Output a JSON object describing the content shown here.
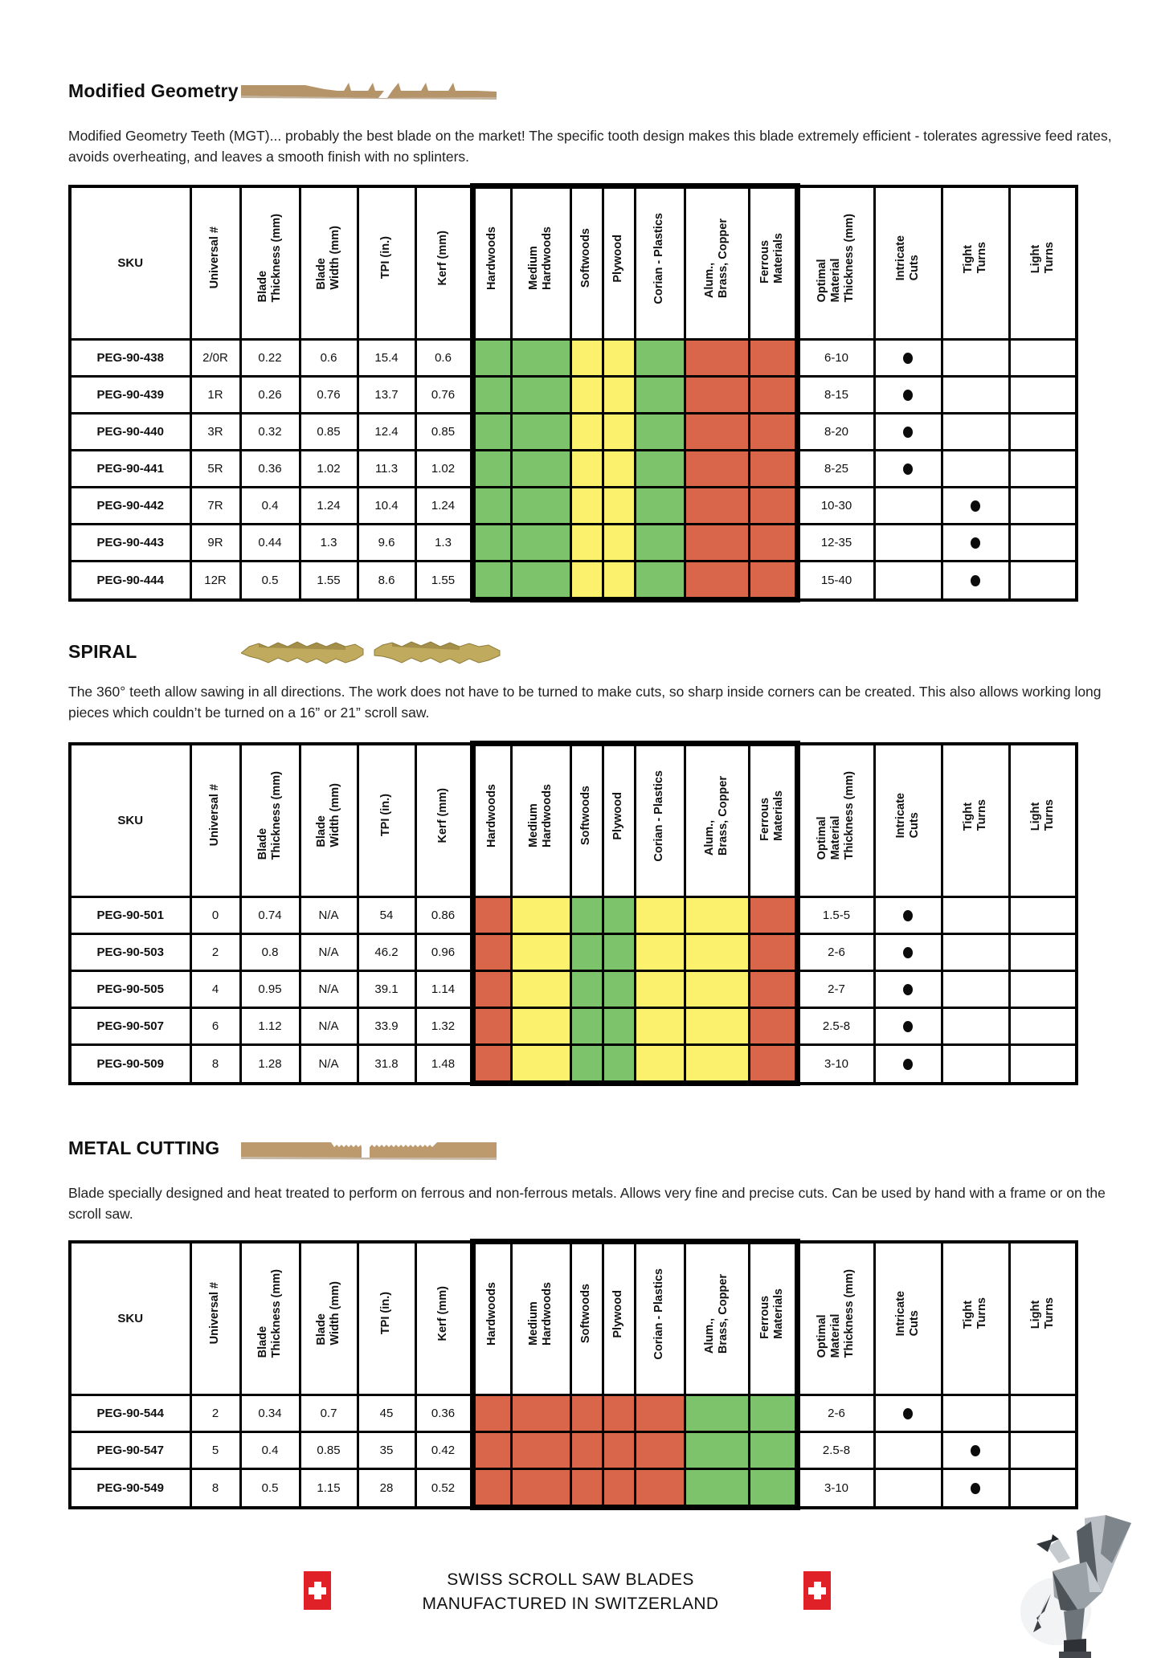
{
  "table_columns": [
    {
      "label": "SKU"
    },
    {
      "label": "Universal #"
    },
    {
      "label": "Blade\nThickness (mm)"
    },
    {
      "label": "Blade\nWidth (mm)"
    },
    {
      "label": "TPI (in.)"
    },
    {
      "label": "Kerf (mm)"
    },
    {
      "label": "Hardwoods",
      "group": "materials"
    },
    {
      "label": "Medium\nHardwoods",
      "group": "materials"
    },
    {
      "label": "Softwoods",
      "group": "materials"
    },
    {
      "label": "Plywood",
      "group": "materials"
    },
    {
      "label": "Corian  - Plastics",
      "group": "materials"
    },
    {
      "label": "Alum.,\nBrass, Copper",
      "group": "materials"
    },
    {
      "label": "Ferrous\nMaterials",
      "group": "materials"
    },
    {
      "label": "Optimal\nMaterial\nThickness (mm)"
    },
    {
      "label": "Intricate\nCuts"
    },
    {
      "label": "Tight\nTurns"
    },
    {
      "label": "Light\nTurns"
    }
  ],
  "legend_colors": {
    "good": "#7cc36b",
    "fair": "#fbf16d",
    "poor": "#d9664a"
  },
  "icons": {
    "flag": "swiss-flag",
    "section1_art": "flat-tooth-blade",
    "section2_art": "spiral-blade",
    "section3_art": "metal-cutting-blade",
    "corner_art": "origami-pegasus"
  },
  "sections": [
    {
      "title": "Modified Geometry",
      "description": "Modified Geometry Teeth (MGT)... probably the best blade on the market! The specific tooth design makes this blade extremely efficient - tolerates agressive feed rates, avoids overheating, and leaves a smooth finish with no splinters.",
      "table": {
        "rows": [
          {
            "sku": "PEG-90-438",
            "universal": "2/0R",
            "blade_thickness": "0.22",
            "blade_width": "0.6",
            "tpi": "15.4",
            "kerf": "0.6",
            "materials": [
              "good",
              "good",
              "fair",
              "fair",
              "good",
              "poor",
              "poor"
            ],
            "optimal_thickness": "6-10",
            "intricate_cuts": true,
            "tight_turns": false,
            "light_turns": false
          },
          {
            "sku": "PEG-90-439",
            "universal": "1R",
            "blade_thickness": "0.26",
            "blade_width": "0.76",
            "tpi": "13.7",
            "kerf": "0.76",
            "materials": [
              "good",
              "good",
              "fair",
              "fair",
              "good",
              "poor",
              "poor"
            ],
            "optimal_thickness": "8-15",
            "intricate_cuts": true,
            "tight_turns": false,
            "light_turns": false
          },
          {
            "sku": "PEG-90-440",
            "universal": "3R",
            "blade_thickness": "0.32",
            "blade_width": "0.85",
            "tpi": "12.4",
            "kerf": "0.85",
            "materials": [
              "good",
              "good",
              "fair",
              "fair",
              "good",
              "poor",
              "poor"
            ],
            "optimal_thickness": "8-20",
            "intricate_cuts": true,
            "tight_turns": false,
            "light_turns": false
          },
          {
            "sku": "PEG-90-441",
            "universal": "5R",
            "blade_thickness": "0.36",
            "blade_width": "1.02",
            "tpi": "11.3",
            "kerf": "1.02",
            "materials": [
              "good",
              "good",
              "fair",
              "fair",
              "good",
              "poor",
              "poor"
            ],
            "optimal_thickness": "8-25",
            "intricate_cuts": true,
            "tight_turns": false,
            "light_turns": false
          },
          {
            "sku": "PEG-90-442",
            "universal": "7R",
            "blade_thickness": "0.4",
            "blade_width": "1.24",
            "tpi": "10.4",
            "kerf": "1.24",
            "materials": [
              "good",
              "good",
              "fair",
              "fair",
              "good",
              "poor",
              "poor"
            ],
            "optimal_thickness": "10-30",
            "intricate_cuts": false,
            "tight_turns": true,
            "light_turns": false
          },
          {
            "sku": "PEG-90-443",
            "universal": "9R",
            "blade_thickness": "0.44",
            "blade_width": "1.3",
            "tpi": "9.6",
            "kerf": "1.3",
            "materials": [
              "good",
              "good",
              "fair",
              "fair",
              "good",
              "poor",
              "poor"
            ],
            "optimal_thickness": "12-35",
            "intricate_cuts": false,
            "tight_turns": true,
            "light_turns": false
          },
          {
            "sku": "PEG-90-444",
            "universal": "12R",
            "blade_thickness": "0.5",
            "blade_width": "1.55",
            "tpi": "8.6",
            "kerf": "1.55",
            "materials": [
              "good",
              "good",
              "fair",
              "fair",
              "good",
              "poor",
              "poor"
            ],
            "optimal_thickness": "15-40",
            "intricate_cuts": false,
            "tight_turns": true,
            "light_turns": false
          }
        ]
      }
    },
    {
      "title": "SPIRAL",
      "description": "The 360° teeth allow sawing in all directions. The work does not have to be turned to make cuts, so sharp inside corners can be created. This also allows working long pieces which couldn’t be turned on a 16” or 21” scroll saw.",
      "table": {
        "rows": [
          {
            "sku": "PEG-90-501",
            "universal": "0",
            "blade_thickness": "0.74",
            "blade_width": "N/A",
            "tpi": "54",
            "kerf": "0.86",
            "materials": [
              "poor",
              "fair",
              "good",
              "good",
              "fair",
              "fair",
              "poor"
            ],
            "optimal_thickness": "1.5-5",
            "intricate_cuts": true,
            "tight_turns": false,
            "light_turns": false
          },
          {
            "sku": "PEG-90-503",
            "universal": "2",
            "blade_thickness": "0.8",
            "blade_width": "N/A",
            "tpi": "46.2",
            "kerf": "0.96",
            "materials": [
              "poor",
              "fair",
              "good",
              "good",
              "fair",
              "fair",
              "poor"
            ],
            "optimal_thickness": "2-6",
            "intricate_cuts": true,
            "tight_turns": false,
            "light_turns": false
          },
          {
            "sku": "PEG-90-505",
            "universal": "4",
            "blade_thickness": "0.95",
            "blade_width": "N/A",
            "tpi": "39.1",
            "kerf": "1.14",
            "materials": [
              "poor",
              "fair",
              "good",
              "good",
              "fair",
              "fair",
              "poor"
            ],
            "optimal_thickness": "2-7",
            "intricate_cuts": true,
            "tight_turns": false,
            "light_turns": false
          },
          {
            "sku": "PEG-90-507",
            "universal": "6",
            "blade_thickness": "1.12",
            "blade_width": "N/A",
            "tpi": "33.9",
            "kerf": "1.32",
            "materials": [
              "poor",
              "fair",
              "good",
              "good",
              "fair",
              "fair",
              "poor"
            ],
            "optimal_thickness": "2.5-8",
            "intricate_cuts": true,
            "tight_turns": false,
            "light_turns": false
          },
          {
            "sku": "PEG-90-509",
            "universal": "8",
            "blade_thickness": "1.28",
            "blade_width": "N/A",
            "tpi": "31.8",
            "kerf": "1.48",
            "materials": [
              "poor",
              "fair",
              "good",
              "good",
              "fair",
              "fair",
              "poor"
            ],
            "optimal_thickness": "3-10",
            "intricate_cuts": true,
            "tight_turns": false,
            "light_turns": false
          }
        ]
      }
    },
    {
      "title": "METAL CUTTING",
      "description": "Blade specially designed and heat treated to perform on ferrous and non-ferrous metals. Allows very fine and precise cuts. Can be used by hand with a frame or on the scroll saw.",
      "table": {
        "rows": [
          {
            "sku": "PEG-90-544",
            "universal": "2",
            "blade_thickness": "0.34",
            "blade_width": "0.7",
            "tpi": "45",
            "kerf": "0.36",
            "materials": [
              "poor",
              "poor",
              "poor",
              "poor",
              "poor",
              "good",
              "good"
            ],
            "optimal_thickness": "2-6",
            "intricate_cuts": true,
            "tight_turns": false,
            "light_turns": false
          },
          {
            "sku": "PEG-90-547",
            "universal": "5",
            "blade_thickness": "0.4",
            "blade_width": "0.85",
            "tpi": "35",
            "kerf": "0.42",
            "materials": [
              "poor",
              "poor",
              "poor",
              "poor",
              "poor",
              "good",
              "good"
            ],
            "optimal_thickness": "2.5-8",
            "intricate_cuts": false,
            "tight_turns": true,
            "light_turns": false
          },
          {
            "sku": "PEG-90-549",
            "universal": "8",
            "blade_thickness": "0.5",
            "blade_width": "1.15",
            "tpi": "28",
            "kerf": "0.52",
            "materials": [
              "poor",
              "poor",
              "poor",
              "poor",
              "poor",
              "good",
              "good"
            ],
            "optimal_thickness": "3-10",
            "intricate_cuts": false,
            "tight_turns": true,
            "light_turns": false
          }
        ]
      }
    }
  ],
  "footer": {
    "line1": "SWISS SCROLL SAW BLADES",
    "line2": "MANUFACTURED IN SWITZERLAND"
  }
}
